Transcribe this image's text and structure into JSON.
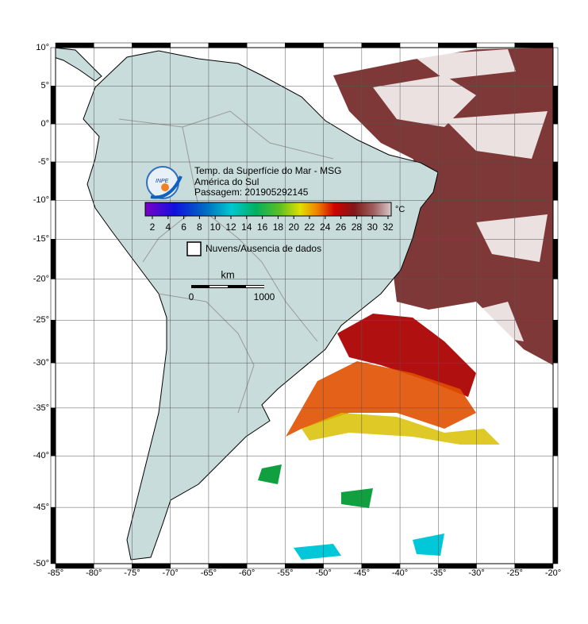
{
  "map": {
    "lon_ticks": [
      {
        "value": -85,
        "label": "-85°"
      },
      {
        "value": -80,
        "label": "-80°"
      },
      {
        "value": -75,
        "label": "-75°"
      },
      {
        "value": -70,
        "label": "-70°"
      },
      {
        "value": -65,
        "label": "-65°"
      },
      {
        "value": -60,
        "label": "-60°"
      },
      {
        "value": -55,
        "label": "-55°"
      },
      {
        "value": -50,
        "label": "-50°"
      },
      {
        "value": -45,
        "label": "-45°"
      },
      {
        "value": -40,
        "label": "-40°"
      },
      {
        "value": -35,
        "label": "-35°"
      },
      {
        "value": -30,
        "label": "-30°"
      },
      {
        "value": -25,
        "label": "-25°"
      },
      {
        "value": -20,
        "label": "-20°"
      }
    ],
    "lat_ticks": [
      {
        "value": 10,
        "label": "10°"
      },
      {
        "value": 5,
        "label": "5°"
      },
      {
        "value": 0,
        "label": "0°"
      },
      {
        "value": -5,
        "label": "-5°"
      },
      {
        "value": -10,
        "label": "-10°"
      },
      {
        "value": -15,
        "label": "-15°"
      },
      {
        "value": -20,
        "label": "-20°"
      },
      {
        "value": -25,
        "label": "-25°"
      },
      {
        "value": -30,
        "label": "-30°"
      },
      {
        "value": -35,
        "label": "-35°"
      },
      {
        "value": -40,
        "label": "-40°"
      },
      {
        "value": -45,
        "label": "-45°"
      },
      {
        "value": -50,
        "label": "-50°"
      }
    ],
    "title_lines": [
      "Temp. da Superfície do Mar - MSG",
      "América do Sul",
      "Passagem: 201905292145"
    ],
    "logo": "INPE",
    "colorbar": {
      "unit": "°C",
      "labels": [
        2,
        4,
        6,
        8,
        10,
        12,
        14,
        16,
        18,
        20,
        22,
        24,
        26,
        28,
        30,
        32
      ]
    },
    "legend": "Nuvens/Ausencia de dados",
    "scale_bar": {
      "unit": "km",
      "labels": [
        0,
        1000
      ]
    }
  }
}
